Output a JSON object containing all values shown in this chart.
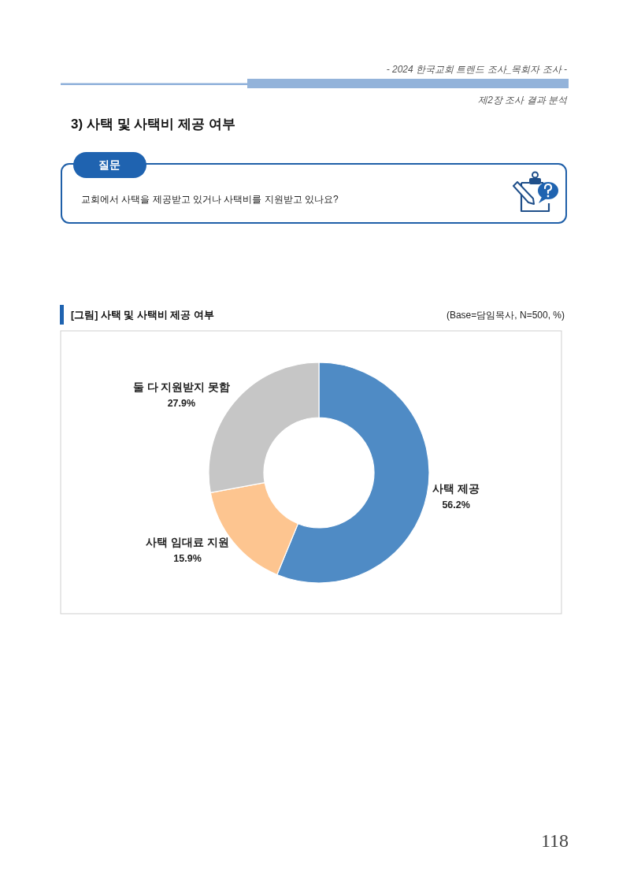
{
  "chart_data": {
    "type": "donut",
    "title": "[그림] 사택 및 사택비 제공 여부",
    "subtitle": "(Base=담임목사, N=500, %)",
    "categories": [
      "사택 제공",
      "사택 임대료 지원",
      "둘 다 지원받지 못함"
    ],
    "values": [
      56.2,
      15.9,
      27.9
    ],
    "colors": [
      "#4f8bc5",
      "#fdc590",
      "#c6c6c6"
    ],
    "value_labels": [
      "56.2%",
      "15.9%",
      "27.9%"
    ],
    "annotations": [
      "- 2024 한국교회 트렌드 조사_목회자 조사 -",
      "제2장 조사 결과 분석",
      "3) 사택 및 사택비 제공 여부",
      "질문",
      "교회에서 사택을 제공받고 있거나 사택비를 지원받고 있나요?",
      "118"
    ]
  }
}
